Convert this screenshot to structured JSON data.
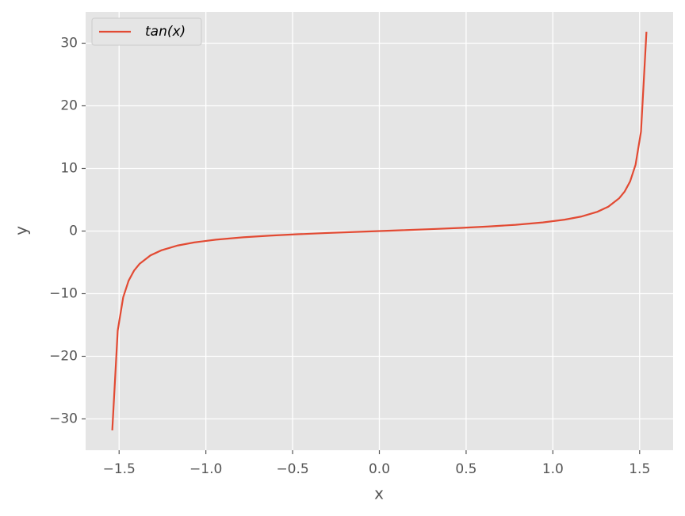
{
  "chart_data": {
    "type": "line",
    "xlabel": "x",
    "ylabel": "y",
    "x": [
      -1.5394,
      -1.508,
      -1.4765,
      -1.4451,
      -1.4137,
      -1.3823,
      -1.3195,
      -1.2566,
      -1.1624,
      -1.0681,
      -0.9425,
      -0.7854,
      -0.6283,
      -0.4712,
      -0.3142,
      -0.1571,
      0,
      0.1571,
      0.3142,
      0.4712,
      0.6283,
      0.7854,
      0.9425,
      1.0681,
      1.1624,
      1.2566,
      1.3195,
      1.3823,
      1.4137,
      1.4451,
      1.4765,
      1.508,
      1.5394
    ],
    "series": [
      {
        "name": "tan(x)",
        "color": "#e24a33",
        "values": [
          -31.82,
          -15.89,
          -10.58,
          -7.92,
          -6.31,
          -5.24,
          -3.89,
          -3.08,
          -2.31,
          -1.82,
          -1.376,
          -1,
          -0.727,
          -0.51,
          -0.325,
          -0.158,
          0,
          0.158,
          0.325,
          0.51,
          0.727,
          1,
          1.376,
          1.82,
          2.31,
          3.08,
          3.89,
          5.24,
          6.31,
          7.92,
          10.58,
          15.89,
          31.82
        ]
      }
    ],
    "xlim": [
      -1.693,
      1.693
    ],
    "ylim": [
      -35,
      35
    ],
    "xticks": [
      {
        "value": -1.5,
        "label": "−1.5"
      },
      {
        "value": -1.0,
        "label": "−1.0"
      },
      {
        "value": -0.5,
        "label": "−0.5"
      },
      {
        "value": 0,
        "label": "0.0"
      },
      0.5,
      {
        "value": 1.0,
        "label": "1.0"
      },
      1.5
    ],
    "yticks": [
      {
        "value": -30,
        "label": "−30"
      },
      {
        "value": -20,
        "label": "−20"
      },
      {
        "value": -10,
        "label": "−10"
      },
      0,
      10,
      20,
      30
    ],
    "grid": true,
    "legend": "upper left",
    "background": "#e5e5e5"
  }
}
